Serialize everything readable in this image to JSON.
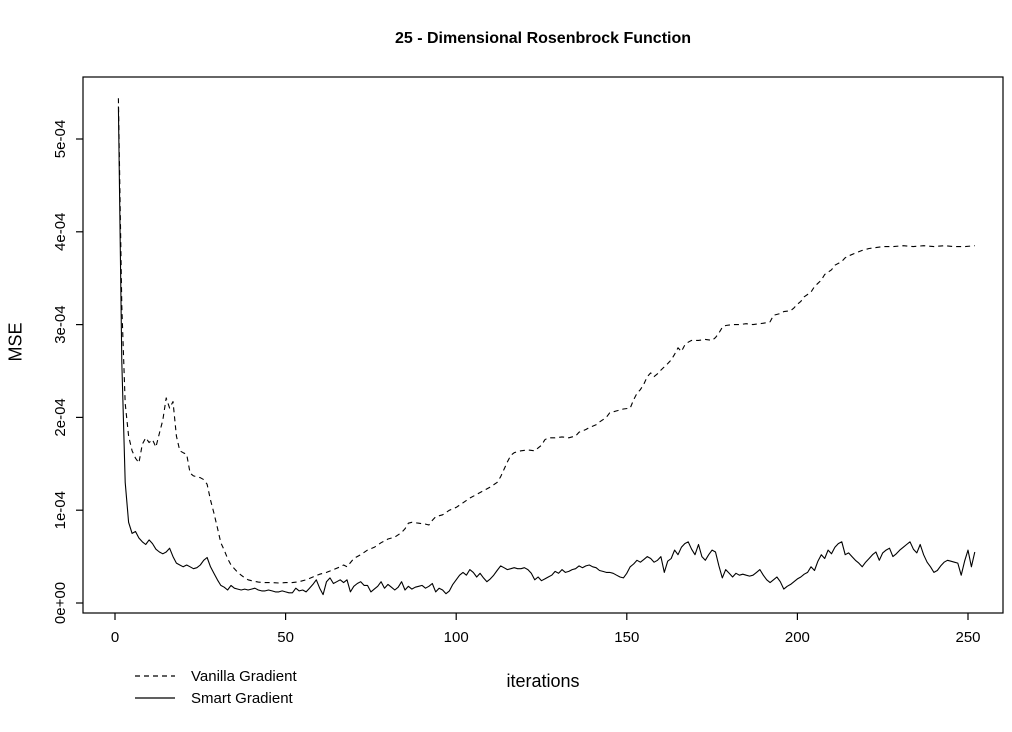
{
  "figure": {
    "title": "25 - Dimensional Rosenbrock Function",
    "x_axis_label": "iterations",
    "y_axis_label": "MSE"
  },
  "legend": {
    "items": [
      {
        "label": "Vanilla Gradient",
        "line_style": "dashed"
      },
      {
        "label": "Smart Gradient",
        "line_style": "solid"
      }
    ]
  },
  "colors": {
    "line": "#000000",
    "background": "#ffffff"
  },
  "axes": {
    "x_ticks": {
      "values": [
        0,
        50,
        100,
        150,
        200,
        250
      ],
      "labels": [
        "0",
        "50",
        "100",
        "150",
        "200",
        "250"
      ]
    },
    "y_ticks": {
      "values": [
        0,
        0.0001,
        0.0002,
        0.0003,
        0.0004,
        0.0005
      ],
      "labels": [
        "0e+00",
        "1e-04",
        "2e-04",
        "3e-04",
        "4e-04",
        "5e-04"
      ]
    }
  },
  "chart_data": {
    "type": "line",
    "title": "25 - Dimensional Rosenbrock Function",
    "xlabel": "iterations",
    "ylabel": "MSE",
    "xlim": [
      0,
      252
    ],
    "ylim": [
      0,
      0.00056
    ],
    "grid": false,
    "legend_position": "bottom-left",
    "y_value_multiplier": 0.0001,
    "series": [
      {
        "name": "Vanilla Gradient",
        "style": "dashed",
        "x": [
          1,
          2,
          3,
          4,
          5,
          6,
          7,
          8,
          9,
          10,
          11,
          12,
          13,
          14,
          15,
          16,
          17,
          18,
          19,
          20,
          21,
          22,
          23,
          24,
          25,
          26,
          27,
          28,
          29,
          30,
          31,
          32,
          33,
          34,
          35,
          36,
          37,
          38,
          39,
          40,
          42,
          44,
          46,
          48,
          50,
          52,
          54,
          56,
          58,
          60,
          62,
          64,
          66,
          67,
          68,
          70,
          72,
          74,
          76,
          78,
          80,
          82,
          84,
          85,
          86,
          87,
          89,
          91,
          92,
          93,
          94,
          96,
          98,
          100,
          102,
          104,
          106,
          108,
          110,
          112,
          113,
          114,
          115,
          116,
          117,
          118,
          119,
          121,
          123,
          125,
          126,
          127,
          129,
          131,
          133,
          135,
          136,
          138,
          139,
          141,
          142,
          144,
          145,
          147,
          149,
          151,
          152,
          153,
          154,
          155,
          156,
          157,
          158,
          159,
          160,
          162,
          163,
          164,
          165,
          166,
          167,
          168,
          169,
          171,
          173,
          175,
          176,
          177,
          178,
          179,
          181,
          183,
          185,
          187,
          189,
          191,
          192,
          193,
          195,
          196,
          198,
          199,
          200,
          201,
          202,
          204,
          205,
          207,
          208,
          210,
          211,
          213,
          214,
          215,
          217,
          219,
          221,
          223,
          225,
          228,
          231,
          234,
          237,
          240,
          243,
          246,
          249,
          252
        ],
        "y": [
          5.44,
          3.2,
          2.15,
          1.8,
          1.64,
          1.56,
          1.51,
          1.71,
          1.78,
          1.73,
          1.76,
          1.68,
          1.83,
          1.97,
          2.21,
          2.1,
          2.17,
          1.8,
          1.64,
          1.62,
          1.6,
          1.4,
          1.37,
          1.36,
          1.35,
          1.33,
          1.28,
          1.11,
          0.97,
          0.81,
          0.65,
          0.57,
          0.48,
          0.41,
          0.37,
          0.33,
          0.3,
          0.27,
          0.25,
          0.24,
          0.225,
          0.22,
          0.22,
          0.215,
          0.22,
          0.22,
          0.23,
          0.25,
          0.28,
          0.31,
          0.33,
          0.36,
          0.39,
          0.41,
          0.39,
          0.48,
          0.52,
          0.57,
          0.6,
          0.65,
          0.69,
          0.71,
          0.76,
          0.8,
          0.86,
          0.87,
          0.86,
          0.85,
          0.84,
          0.89,
          0.93,
          0.95,
          1.0,
          1.03,
          1.08,
          1.13,
          1.17,
          1.21,
          1.25,
          1.3,
          1.36,
          1.44,
          1.52,
          1.59,
          1.62,
          1.63,
          1.64,
          1.65,
          1.64,
          1.7,
          1.76,
          1.78,
          1.78,
          1.79,
          1.78,
          1.8,
          1.84,
          1.87,
          1.89,
          1.92,
          1.95,
          2.0,
          2.05,
          2.07,
          2.09,
          2.1,
          2.19,
          2.26,
          2.3,
          2.36,
          2.44,
          2.48,
          2.44,
          2.47,
          2.51,
          2.58,
          2.62,
          2.68,
          2.75,
          2.71,
          2.78,
          2.81,
          2.83,
          2.83,
          2.84,
          2.83,
          2.86,
          2.91,
          2.97,
          2.99,
          3.0,
          3.0,
          3.01,
          3.0,
          3.01,
          3.02,
          3.03,
          3.1,
          3.12,
          3.14,
          3.15,
          3.18,
          3.22,
          3.25,
          3.3,
          3.35,
          3.41,
          3.48,
          3.54,
          3.59,
          3.64,
          3.68,
          3.72,
          3.74,
          3.77,
          3.8,
          3.82,
          3.83,
          3.84,
          3.84,
          3.85,
          3.84,
          3.85,
          3.84,
          3.85,
          3.84,
          3.84,
          3.85
        ]
      },
      {
        "name": "Smart Gradient",
        "style": "solid",
        "x": [
          1,
          2,
          3,
          4,
          5,
          6,
          7,
          8,
          9,
          10,
          11,
          12,
          13,
          14,
          15,
          16,
          17,
          18,
          19,
          20,
          21,
          22,
          23,
          24,
          25,
          26,
          27,
          28,
          29,
          30,
          31,
          32,
          33,
          34,
          35,
          36,
          37,
          38,
          39,
          40,
          41,
          42,
          43,
          44,
          45,
          46,
          47,
          48,
          49,
          50,
          51,
          52,
          53,
          54,
          55,
          56,
          57,
          58,
          59,
          60,
          61,
          62,
          63,
          64,
          65,
          66,
          67,
          68,
          69,
          70,
          71,
          72,
          73,
          74,
          75,
          76,
          77,
          78,
          79,
          80,
          81,
          82,
          83,
          84,
          85,
          86,
          87,
          88,
          89,
          90,
          91,
          92,
          93,
          94,
          95,
          96,
          97,
          98,
          99,
          100,
          101,
          102,
          103,
          104,
          105,
          106,
          107,
          108,
          109,
          110,
          111,
          112,
          113,
          114,
          115,
          116,
          117,
          118,
          119,
          120,
          121,
          122,
          123,
          124,
          125,
          126,
          127,
          128,
          129,
          130,
          131,
          132,
          133,
          134,
          135,
          136,
          137,
          138,
          139,
          140,
          141,
          142,
          143,
          144,
          145,
          146,
          147,
          148,
          149,
          150,
          151,
          152,
          153,
          154,
          155,
          156,
          157,
          158,
          159,
          160,
          161,
          162,
          163,
          164,
          165,
          166,
          167,
          168,
          169,
          170,
          171,
          172,
          173,
          174,
          175,
          176,
          177,
          178,
          179,
          180,
          181,
          182,
          183,
          184,
          185,
          186,
          187,
          188,
          189,
          190,
          191,
          192,
          193,
          194,
          195,
          196,
          197,
          198,
          199,
          200,
          201,
          202,
          203,
          204,
          205,
          206,
          207,
          208,
          209,
          210,
          211,
          212,
          213,
          214,
          215,
          216,
          217,
          218,
          219,
          220,
          221,
          222,
          223,
          224,
          225,
          226,
          227,
          228,
          229,
          230,
          231,
          232,
          233,
          234,
          235,
          236,
          237,
          238,
          239,
          240,
          241,
          242,
          243,
          244,
          245,
          246,
          247,
          248,
          249,
          250,
          251,
          252
        ],
        "y": [
          5.35,
          2.6,
          1.3,
          0.87,
          0.75,
          0.77,
          0.7,
          0.66,
          0.63,
          0.68,
          0.64,
          0.58,
          0.55,
          0.53,
          0.55,
          0.59,
          0.5,
          0.43,
          0.41,
          0.39,
          0.41,
          0.39,
          0.37,
          0.38,
          0.41,
          0.46,
          0.49,
          0.39,
          0.32,
          0.25,
          0.19,
          0.17,
          0.14,
          0.19,
          0.16,
          0.15,
          0.14,
          0.15,
          0.14,
          0.15,
          0.16,
          0.14,
          0.13,
          0.13,
          0.14,
          0.13,
          0.12,
          0.12,
          0.13,
          0.12,
          0.11,
          0.11,
          0.16,
          0.13,
          0.14,
          0.12,
          0.16,
          0.2,
          0.25,
          0.16,
          0.09,
          0.23,
          0.27,
          0.21,
          0.23,
          0.25,
          0.22,
          0.25,
          0.12,
          0.18,
          0.21,
          0.23,
          0.19,
          0.19,
          0.12,
          0.15,
          0.18,
          0.23,
          0.16,
          0.2,
          0.17,
          0.14,
          0.17,
          0.23,
          0.14,
          0.18,
          0.15,
          0.17,
          0.18,
          0.19,
          0.16,
          0.18,
          0.21,
          0.12,
          0.16,
          0.14,
          0.1,
          0.13,
          0.2,
          0.25,
          0.3,
          0.33,
          0.3,
          0.36,
          0.33,
          0.28,
          0.32,
          0.27,
          0.23,
          0.26,
          0.3,
          0.35,
          0.4,
          0.38,
          0.36,
          0.37,
          0.38,
          0.37,
          0.37,
          0.38,
          0.36,
          0.32,
          0.25,
          0.28,
          0.24,
          0.26,
          0.28,
          0.3,
          0.34,
          0.32,
          0.36,
          0.33,
          0.34,
          0.36,
          0.37,
          0.4,
          0.38,
          0.4,
          0.41,
          0.39,
          0.38,
          0.35,
          0.34,
          0.33,
          0.33,
          0.32,
          0.3,
          0.28,
          0.27,
          0.32,
          0.39,
          0.42,
          0.46,
          0.44,
          0.47,
          0.5,
          0.48,
          0.44,
          0.46,
          0.5,
          0.33,
          0.45,
          0.48,
          0.57,
          0.52,
          0.6,
          0.64,
          0.66,
          0.58,
          0.52,
          0.63,
          0.5,
          0.46,
          0.52,
          0.57,
          0.55,
          0.4,
          0.27,
          0.36,
          0.32,
          0.28,
          0.32,
          0.3,
          0.31,
          0.3,
          0.29,
          0.3,
          0.33,
          0.36,
          0.3,
          0.25,
          0.22,
          0.25,
          0.28,
          0.23,
          0.15,
          0.18,
          0.2,
          0.23,
          0.26,
          0.28,
          0.31,
          0.33,
          0.39,
          0.35,
          0.45,
          0.52,
          0.48,
          0.57,
          0.53,
          0.6,
          0.64,
          0.66,
          0.52,
          0.54,
          0.5,
          0.46,
          0.43,
          0.39,
          0.44,
          0.48,
          0.52,
          0.55,
          0.46,
          0.54,
          0.57,
          0.59,
          0.5,
          0.53,
          0.57,
          0.6,
          0.63,
          0.66,
          0.58,
          0.54,
          0.63,
          0.52,
          0.44,
          0.39,
          0.33,
          0.35,
          0.4,
          0.44,
          0.46,
          0.45,
          0.44,
          0.43,
          0.3,
          0.45,
          0.57,
          0.39,
          0.55
        ]
      }
    ]
  }
}
